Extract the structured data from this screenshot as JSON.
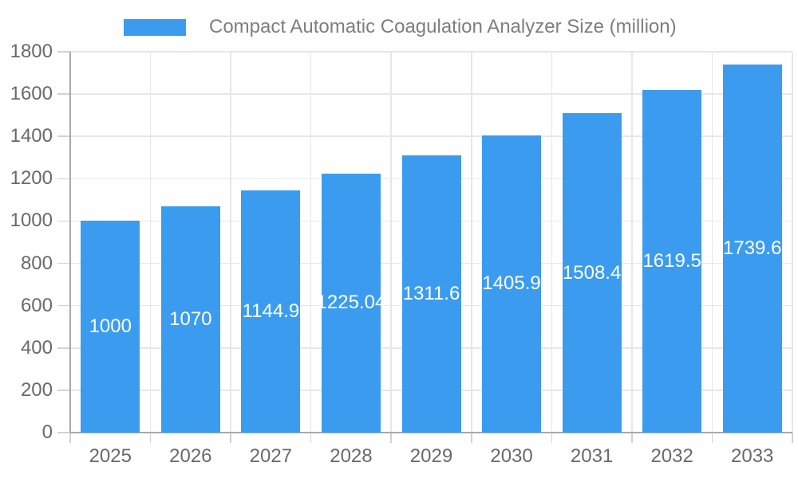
{
  "legend": {
    "label": "Compact Automatic Coagulation Analyzer Size (million)",
    "swatch_color": "#3B9CEF"
  },
  "chart_data": {
    "type": "bar",
    "title": "Compact Automatic Coagulation Analyzer Size (million)",
    "legend_entries": [
      "Compact Automatic Coagulation Analyzer Size (million)"
    ],
    "legend_position": "top",
    "categories": [
      "2025",
      "2026",
      "2027",
      "2028",
      "2029",
      "2030",
      "2031",
      "2032",
      "2033"
    ],
    "series": [
      {
        "name": "Compact Automatic Coagulation Analyzer Size (million)",
        "values": [
          1000,
          1070,
          1144.9,
          1225.04,
          1311.6,
          1405.9,
          1508.4,
          1619.5,
          1739.6
        ]
      }
    ],
    "bar_labels": [
      "1000",
      "1070",
      "1144.9",
      "1225.04",
      "1311.6",
      "1405.9",
      "1508.4",
      "1619.5",
      "1739.6"
    ],
    "y_ticks": [
      0,
      200,
      400,
      600,
      800,
      1000,
      1200,
      1400,
      1600,
      1800
    ],
    "ylim": [
      0,
      1800
    ],
    "xlabel": "",
    "ylabel": "",
    "grid": true,
    "colors": {
      "bar": "#3B9CEF",
      "bar_label_text": "#ffffff",
      "axis_text": "#696969",
      "legend_text": "#7e7e7e",
      "gridline": "#e7e7e7",
      "tick_mark": "#d2d2d2",
      "axis_line": "#a9a9a9",
      "background": "#ffffff"
    }
  }
}
